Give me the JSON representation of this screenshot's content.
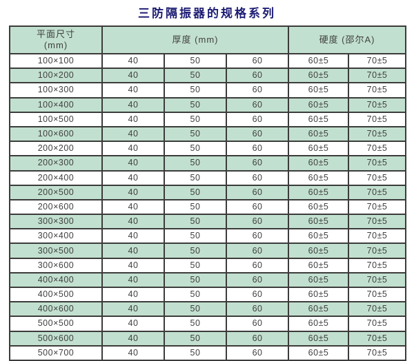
{
  "title": "三防隔振器的规格系列",
  "table": {
    "header": {
      "size_line1": "平面尺寸",
      "size_line2": "(mm)",
      "thickness": "厚度 (mm)",
      "hardness": "硬度 (邵尔A)"
    },
    "rows": [
      [
        "100×100",
        "40",
        "50",
        "60",
        "60±5",
        "70±5"
      ],
      [
        "100×200",
        "40",
        "50",
        "60",
        "60±5",
        "70±5"
      ],
      [
        "100×300",
        "40",
        "50",
        "60",
        "60±5",
        "70±5"
      ],
      [
        "100×400",
        "40",
        "50",
        "60",
        "60±5",
        "70±5"
      ],
      [
        "100×500",
        "40",
        "50",
        "60",
        "60±5",
        "70±5"
      ],
      [
        "100×600",
        "40",
        "50",
        "60",
        "60±5",
        "70±5"
      ],
      [
        "200×200",
        "40",
        "50",
        "60",
        "60±5",
        "70±5"
      ],
      [
        "200×300",
        "40",
        "50",
        "60",
        "60±5",
        "70±5"
      ],
      [
        "200×400",
        "40",
        "50",
        "60",
        "60±5",
        "70±5"
      ],
      [
        "200×500",
        "40",
        "50",
        "60",
        "60±5",
        "70±5"
      ],
      [
        "200×600",
        "40",
        "50",
        "60",
        "60±5",
        "70±5"
      ],
      [
        "300×300",
        "40",
        "50",
        "60",
        "60±5",
        "70±5"
      ],
      [
        "300×400",
        "40",
        "50",
        "60",
        "60±5",
        "70±5"
      ],
      [
        "300×500",
        "40",
        "50",
        "60",
        "60±5",
        "70±5"
      ],
      [
        "300×600",
        "40",
        "50",
        "60",
        "60±5",
        "70±5"
      ],
      [
        "400×400",
        "40",
        "50",
        "60",
        "60±5",
        "70±5"
      ],
      [
        "400×500",
        "40",
        "50",
        "60",
        "60±5",
        "70±5"
      ],
      [
        "400×600",
        "40",
        "50",
        "60",
        "60±5",
        "70±5"
      ],
      [
        "500×500",
        "40",
        "50",
        "60",
        "60±5",
        "70±5"
      ],
      [
        "500×600",
        "40",
        "50",
        "60",
        "60±5",
        "70±5"
      ],
      [
        "500×700",
        "40",
        "50",
        "60",
        "60±5",
        "70±5"
      ]
    ]
  },
  "colors": {
    "row_green": "#c2e0cf",
    "border": "#3b3b3b",
    "title_navy": "#1c1c74",
    "text": "#404040"
  }
}
